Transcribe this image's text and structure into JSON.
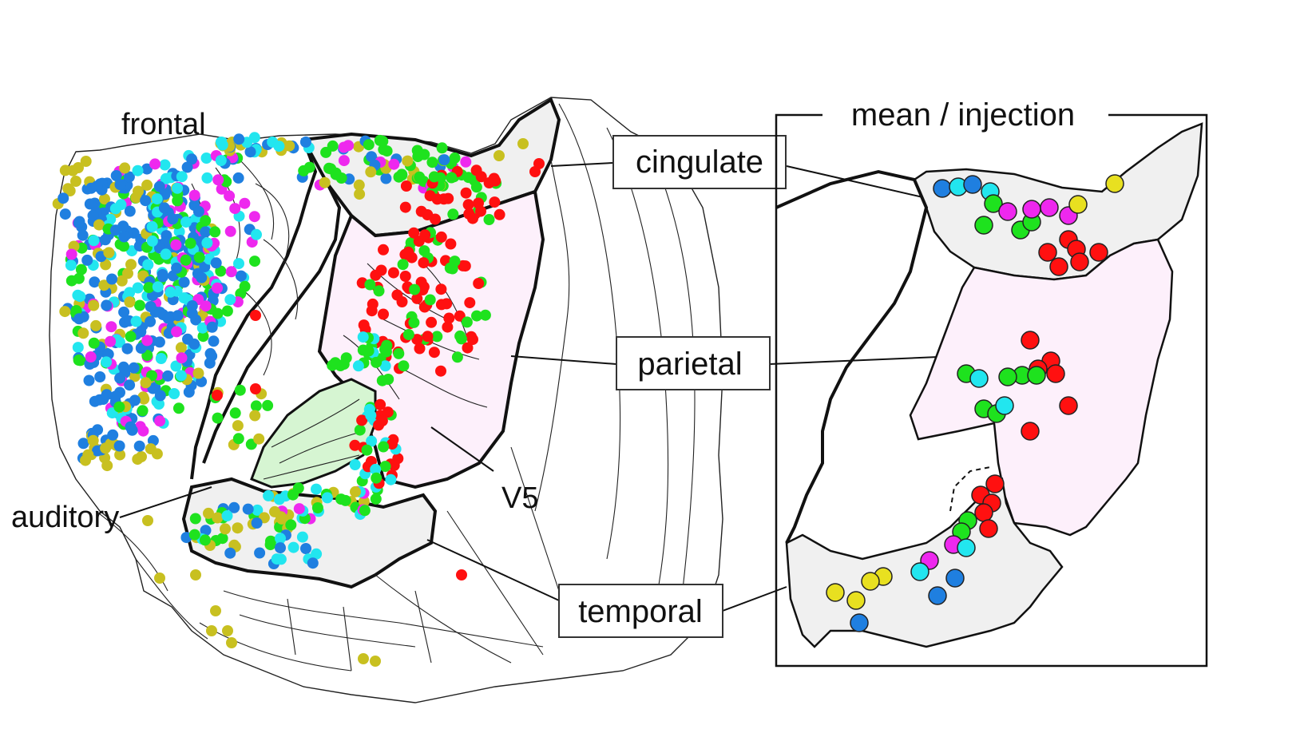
{
  "labels": {
    "frontal": "frontal",
    "auditory": "auditory",
    "v5": "V5",
    "cingulate": "cingulate",
    "parietal": "parietal",
    "temporal": "temporal",
    "inset_title": "mean / injection"
  },
  "colors": {
    "blue": "#1f7fe0",
    "cyan": "#22e6ef",
    "green": "#1ee21e",
    "red": "#ff1010",
    "magenta": "#ee28ee",
    "olive": "#c8c020",
    "region_gray": "#f0f0f0",
    "parietal_pink": "#fdf0fb",
    "auditory_green": "#d6f5d2",
    "outline": "#111111"
  }
}
